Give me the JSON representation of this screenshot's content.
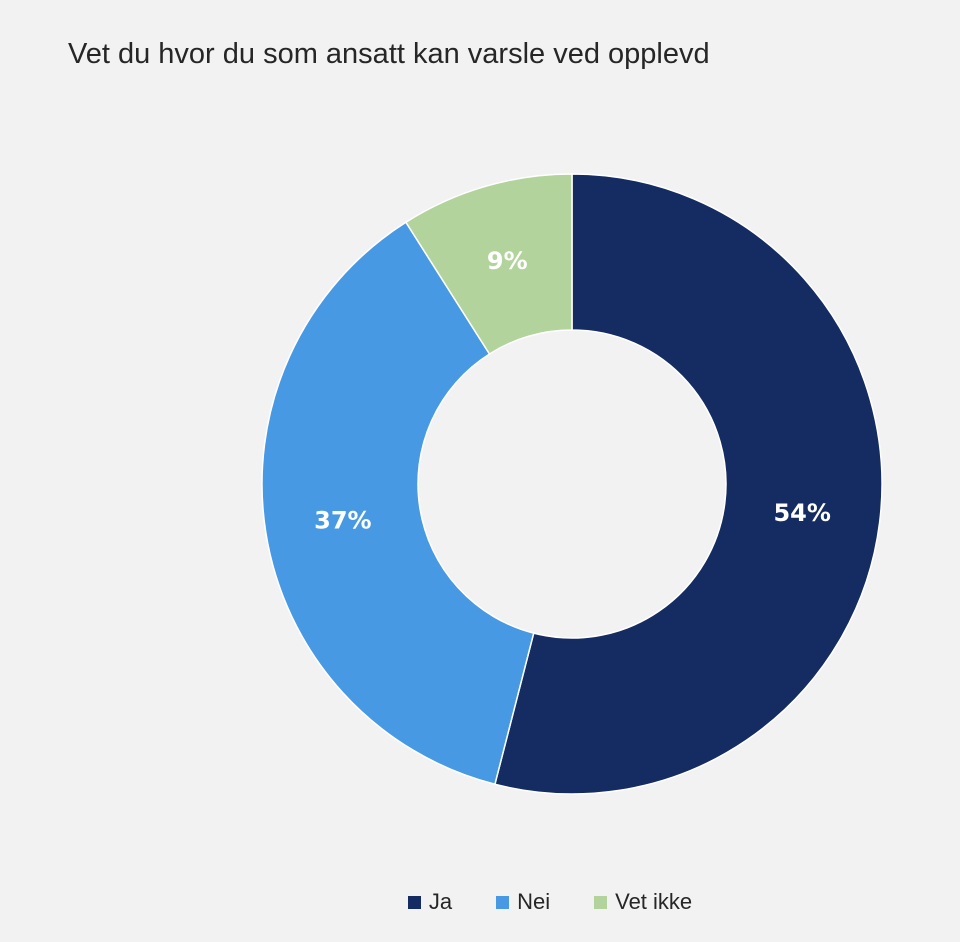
{
  "chart_data": {
    "type": "pie",
    "title": "Vet du hvor du som ansatt kan varsle ved opplevd",
    "series": [
      {
        "name": "Ja",
        "value": 54,
        "label": "54%",
        "color": "#142c62"
      },
      {
        "name": "Nei",
        "value": 37,
        "label": "37%",
        "color": "#4799e3"
      },
      {
        "name": "Vet ikke",
        "value": 9,
        "label": "9%",
        "color": "#b3d39c"
      }
    ],
    "legend_position": "bottom",
    "donut": true
  }
}
